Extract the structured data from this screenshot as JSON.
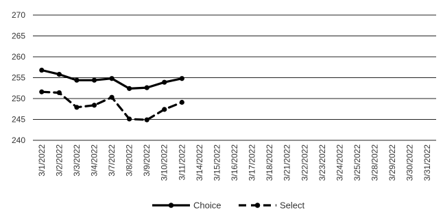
{
  "chart_data": {
    "type": "line",
    "title": "",
    "xlabel": "",
    "ylabel": "",
    "ylim": [
      240,
      270
    ],
    "yticks": [
      240,
      245,
      250,
      255,
      260,
      265,
      270
    ],
    "grid": true,
    "legend_position": "bottom",
    "categories": [
      "3/1/2022",
      "3/2/2022",
      "3/3/2022",
      "3/4/2022",
      "3/7/2022",
      "3/8/2022",
      "3/9/2022",
      "3/10/2022",
      "3/11/2022",
      "3/14/2022",
      "3/15/2022",
      "3/16/2022",
      "3/17/2022",
      "3/18/2022",
      "3/21/2022",
      "3/22/2022",
      "3/23/2022",
      "3/24/2022",
      "3/25/2022",
      "3/28/2022",
      "3/29/2022",
      "3/30/2022",
      "3/31/2022"
    ],
    "series": [
      {
        "name": "Choice",
        "style": "solid",
        "color": "#000000",
        "values": [
          256.8,
          255.8,
          254.4,
          254.4,
          254.8,
          252.4,
          252.6,
          253.9,
          254.8,
          null,
          null,
          null,
          null,
          null,
          null,
          null,
          null,
          null,
          null,
          null,
          null,
          null,
          null
        ]
      },
      {
        "name": "Select",
        "style": "dashed",
        "color": "#000000",
        "values": [
          251.6,
          251.4,
          247.9,
          248.4,
          250.3,
          245.1,
          244.9,
          247.4,
          249.1,
          null,
          null,
          null,
          null,
          null,
          null,
          null,
          null,
          null,
          null,
          null,
          null,
          null,
          null
        ]
      }
    ]
  }
}
